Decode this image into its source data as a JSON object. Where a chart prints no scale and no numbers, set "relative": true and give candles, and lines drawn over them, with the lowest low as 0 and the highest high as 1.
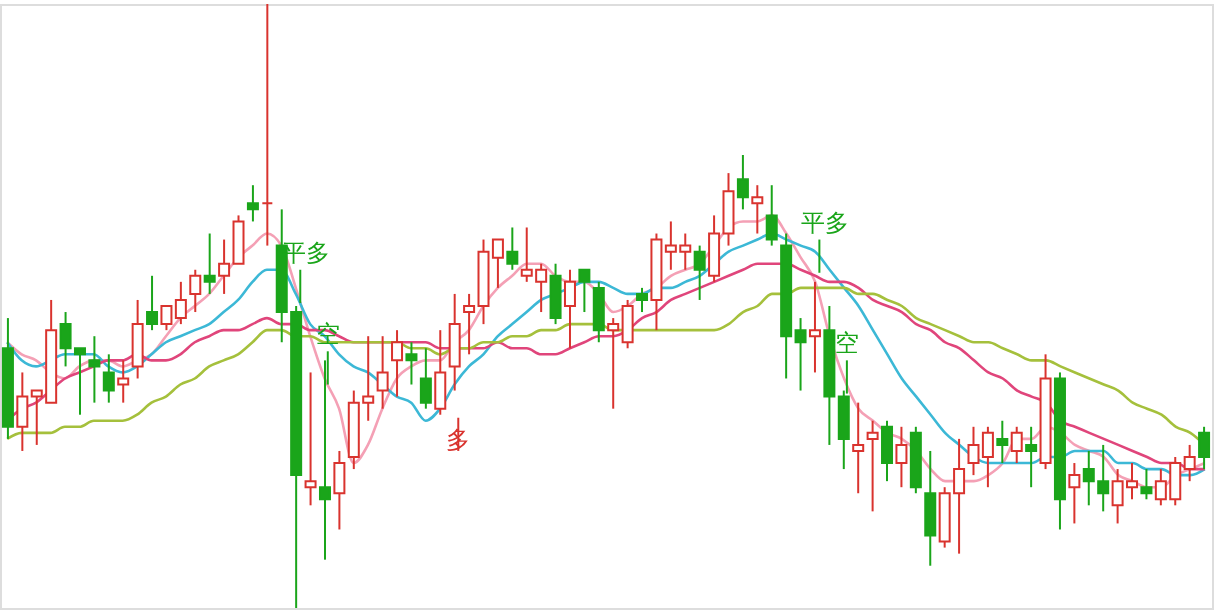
{
  "chart_data": {
    "type": "candlestick",
    "relative": true,
    "categories": [
      null,
      null,
      null,
      null,
      null,
      null,
      null,
      null,
      null,
      null,
      null,
      null,
      null,
      null,
      null,
      null,
      null,
      null,
      null,
      null,
      null,
      null,
      null,
      null,
      null,
      null,
      null,
      null,
      null,
      null,
      null,
      null,
      null,
      null,
      null,
      null,
      null,
      null,
      null,
      null,
      null,
      null,
      null,
      null,
      null,
      null,
      null,
      null,
      null,
      null,
      null,
      null,
      null,
      null,
      null,
      null,
      null,
      null,
      null,
      null,
      null,
      null,
      null,
      null,
      null,
      null,
      null,
      null,
      null,
      null,
      null,
      null,
      null,
      null,
      null,
      null,
      null,
      null,
      null,
      null,
      null,
      null,
      null,
      null
    ],
    "ohlc": [
      [
        0.43,
        0.48,
        0.28,
        0.3
      ],
      [
        0.3,
        0.39,
        0.26,
        0.35
      ],
      [
        0.35,
        0.36,
        0.27,
        0.36
      ],
      [
        0.34,
        0.51,
        0.34,
        0.46
      ],
      [
        0.47,
        0.49,
        0.4,
        0.43
      ],
      [
        0.43,
        0.43,
        0.32,
        0.42
      ],
      [
        0.41,
        0.45,
        0.34,
        0.4
      ],
      [
        0.39,
        0.42,
        0.34,
        0.36
      ],
      [
        0.37,
        0.41,
        0.34,
        0.38
      ],
      [
        0.4,
        0.51,
        0.38,
        0.47
      ],
      [
        0.49,
        0.55,
        0.46,
        0.47
      ],
      [
        0.47,
        0.5,
        0.46,
        0.5
      ],
      [
        0.48,
        0.54,
        0.47,
        0.51
      ],
      [
        0.52,
        0.56,
        0.49,
        0.55
      ],
      [
        0.55,
        0.62,
        0.52,
        0.54
      ],
      [
        0.55,
        0.61,
        0.52,
        0.57
      ],
      [
        0.57,
        0.65,
        0.57,
        0.64
      ],
      [
        0.67,
        0.7,
        0.64,
        0.66
      ],
      [
        0.67,
        1.0,
        0.6,
        0.67
      ],
      [
        0.6,
        0.66,
        0.44,
        0.49
      ],
      [
        0.49,
        0.5,
        0.0,
        0.22
      ],
      [
        0.2,
        0.39,
        0.17,
        0.21
      ],
      [
        0.2,
        0.41,
        0.08,
        0.18
      ],
      [
        0.19,
        0.26,
        0.13,
        0.24
      ],
      [
        0.25,
        0.36,
        0.23,
        0.34
      ],
      [
        0.34,
        0.45,
        0.31,
        0.35
      ],
      [
        0.36,
        0.45,
        0.33,
        0.39
      ],
      [
        0.41,
        0.46,
        0.35,
        0.44
      ],
      [
        0.42,
        0.44,
        0.37,
        0.41
      ],
      [
        0.38,
        0.43,
        0.33,
        0.34
      ],
      [
        0.33,
        0.46,
        0.32,
        0.39
      ],
      [
        0.4,
        0.52,
        0.36,
        0.47
      ],
      [
        0.49,
        0.52,
        0.42,
        0.5
      ],
      [
        0.5,
        0.61,
        0.47,
        0.59
      ],
      [
        0.58,
        0.61,
        0.53,
        0.61
      ],
      [
        0.59,
        0.63,
        0.56,
        0.57
      ],
      [
        0.55,
        0.63,
        0.54,
        0.56
      ],
      [
        0.54,
        0.57,
        0.49,
        0.56
      ],
      [
        0.55,
        0.57,
        0.47,
        0.48
      ],
      [
        0.5,
        0.56,
        0.43,
        0.54
      ],
      [
        0.56,
        0.56,
        0.49,
        0.54
      ],
      [
        0.53,
        0.54,
        0.44,
        0.46
      ],
      [
        0.46,
        0.48,
        0.33,
        0.47
      ],
      [
        0.44,
        0.51,
        0.43,
        0.5
      ],
      [
        0.52,
        0.53,
        0.49,
        0.51
      ],
      [
        0.51,
        0.62,
        0.46,
        0.61
      ],
      [
        0.59,
        0.64,
        0.56,
        0.6
      ],
      [
        0.59,
        0.62,
        0.56,
        0.6
      ],
      [
        0.59,
        0.6,
        0.51,
        0.56
      ],
      [
        0.55,
        0.65,
        0.54,
        0.62
      ],
      [
        0.62,
        0.72,
        0.6,
        0.69
      ],
      [
        0.71,
        0.75,
        0.66,
        0.68
      ],
      [
        0.67,
        0.7,
        0.62,
        0.68
      ],
      [
        0.65,
        0.7,
        0.6,
        0.61
      ],
      [
        0.6,
        0.62,
        0.38,
        0.45
      ],
      [
        0.46,
        0.48,
        0.36,
        0.44
      ],
      [
        0.45,
        0.54,
        0.39,
        0.46
      ],
      [
        0.46,
        0.5,
        0.27,
        0.35
      ],
      [
        0.35,
        0.36,
        0.23,
        0.28
      ],
      [
        0.26,
        0.34,
        0.19,
        0.27
      ],
      [
        0.28,
        0.31,
        0.16,
        0.29
      ],
      [
        0.3,
        0.31,
        0.21,
        0.24
      ],
      [
        0.24,
        0.3,
        0.2,
        0.27
      ],
      [
        0.29,
        0.3,
        0.19,
        0.2
      ],
      [
        0.19,
        0.26,
        0.07,
        0.12
      ],
      [
        0.11,
        0.2,
        0.1,
        0.19
      ],
      [
        0.19,
        0.28,
        0.09,
        0.23
      ],
      [
        0.24,
        0.3,
        0.22,
        0.27
      ],
      [
        0.25,
        0.3,
        0.2,
        0.29
      ],
      [
        0.28,
        0.31,
        0.24,
        0.27
      ],
      [
        0.26,
        0.3,
        0.24,
        0.29
      ],
      [
        0.27,
        0.3,
        0.2,
        0.26
      ],
      [
        0.24,
        0.42,
        0.23,
        0.38
      ],
      [
        0.38,
        0.39,
        0.13,
        0.18
      ],
      [
        0.2,
        0.24,
        0.14,
        0.22
      ],
      [
        0.23,
        0.26,
        0.17,
        0.21
      ],
      [
        0.21,
        0.27,
        0.16,
        0.19
      ],
      [
        0.17,
        0.23,
        0.14,
        0.21
      ],
      [
        0.2,
        0.24,
        0.18,
        0.21
      ],
      [
        0.2,
        0.23,
        0.18,
        0.19
      ],
      [
        0.18,
        0.23,
        0.17,
        0.21
      ],
      [
        0.18,
        0.25,
        0.17,
        0.24
      ],
      [
        0.23,
        0.27,
        0.21,
        0.25
      ],
      [
        0.29,
        0.3,
        0.23,
        0.25
      ]
    ],
    "series": [
      {
        "type": "line",
        "color": "#f4a0b5",
        "values": [
          0.44,
          0.42,
          0.41,
          0.39,
          0.38,
          0.4,
          0.41,
          0.41,
          0.4,
          0.41,
          0.42,
          0.45,
          0.48,
          0.5,
          0.52,
          0.55,
          0.58,
          0.6,
          0.62,
          0.6,
          0.53,
          0.45,
          0.38,
          0.33,
          0.24,
          0.27,
          0.33,
          0.38,
          0.4,
          0.41,
          0.41,
          0.44,
          0.46,
          0.5,
          0.53,
          0.55,
          0.57,
          0.57,
          0.55,
          0.54,
          0.54,
          0.52,
          0.49,
          0.5,
          0.52,
          0.53,
          0.55,
          0.56,
          0.57,
          0.6,
          0.63,
          0.64,
          0.64,
          0.65,
          0.62,
          0.58,
          0.54,
          0.45,
          0.38,
          0.33,
          0.31,
          0.29,
          0.28,
          0.26,
          0.23,
          0.21,
          0.21,
          0.21,
          0.22,
          0.24,
          0.28,
          0.28,
          0.3,
          0.29,
          0.27,
          0.26,
          0.25,
          0.22,
          0.21,
          0.2,
          0.2,
          0.22,
          0.23,
          0.24
        ]
      },
      {
        "type": "line",
        "color": "#3cb8d6",
        "values": [
          0.44,
          0.41,
          0.4,
          0.41,
          0.42,
          0.42,
          0.42,
          0.4,
          0.39,
          0.4,
          0.42,
          0.44,
          0.45,
          0.46,
          0.47,
          0.49,
          0.51,
          0.54,
          0.56,
          0.56,
          0.52,
          0.47,
          0.45,
          0.42,
          0.4,
          0.39,
          0.37,
          0.35,
          0.34,
          0.31,
          0.33,
          0.37,
          0.4,
          0.42,
          0.45,
          0.47,
          0.49,
          0.51,
          0.52,
          0.53,
          0.54,
          0.54,
          0.53,
          0.52,
          0.52,
          0.53,
          0.53,
          0.54,
          0.55,
          0.57,
          0.59,
          0.6,
          0.61,
          0.62,
          0.61,
          0.6,
          0.59,
          0.56,
          0.53,
          0.5,
          0.46,
          0.42,
          0.38,
          0.35,
          0.32,
          0.29,
          0.27,
          0.25,
          0.24,
          0.24,
          0.24,
          0.24,
          0.25,
          0.25,
          0.26,
          0.26,
          0.26,
          0.24,
          0.24,
          0.23,
          0.23,
          0.22,
          0.22,
          0.23
        ]
      },
      {
        "type": "line",
        "color": "#e0457b",
        "values": [
          0.31,
          0.33,
          0.34,
          0.36,
          0.38,
          0.39,
          0.4,
          0.41,
          0.41,
          0.42,
          0.41,
          0.41,
          0.42,
          0.44,
          0.45,
          0.46,
          0.46,
          0.47,
          0.48,
          0.47,
          0.47,
          0.46,
          0.46,
          0.45,
          0.44,
          0.44,
          0.44,
          0.44,
          0.44,
          0.44,
          0.43,
          0.43,
          0.43,
          0.43,
          0.44,
          0.43,
          0.43,
          0.42,
          0.42,
          0.43,
          0.44,
          0.45,
          0.45,
          0.46,
          0.48,
          0.49,
          0.51,
          0.52,
          0.53,
          0.54,
          0.55,
          0.56,
          0.57,
          0.57,
          0.57,
          0.56,
          0.55,
          0.54,
          0.54,
          0.53,
          0.51,
          0.5,
          0.49,
          0.47,
          0.46,
          0.44,
          0.43,
          0.41,
          0.39,
          0.38,
          0.36,
          0.35,
          0.34,
          0.31,
          0.3,
          0.29,
          0.28,
          0.27,
          0.26,
          0.25,
          0.24,
          0.24,
          0.23,
          0.23
        ]
      },
      {
        "type": "line",
        "color": "#a5c03c",
        "values": [
          0.28,
          0.29,
          0.29,
          0.29,
          0.3,
          0.3,
          0.31,
          0.31,
          0.31,
          0.32,
          0.34,
          0.35,
          0.37,
          0.38,
          0.4,
          0.41,
          0.42,
          0.44,
          0.46,
          0.46,
          0.45,
          0.45,
          0.44,
          0.44,
          0.44,
          0.44,
          0.44,
          0.44,
          0.43,
          0.43,
          0.42,
          0.43,
          0.43,
          0.44,
          0.44,
          0.45,
          0.45,
          0.46,
          0.46,
          0.47,
          0.47,
          0.47,
          0.46,
          0.46,
          0.46,
          0.46,
          0.46,
          0.46,
          0.46,
          0.46,
          0.47,
          0.49,
          0.5,
          0.52,
          0.52,
          0.53,
          0.53,
          0.53,
          0.53,
          0.52,
          0.52,
          0.51,
          0.5,
          0.48,
          0.47,
          0.46,
          0.45,
          0.44,
          0.44,
          0.43,
          0.42,
          0.41,
          0.41,
          0.4,
          0.39,
          0.38,
          0.37,
          0.36,
          0.34,
          0.33,
          0.32,
          0.3,
          0.29,
          0.27
        ]
      }
    ],
    "annotations": [
      "平多",
      "空",
      "多",
      "平多",
      "空"
    ]
  }
}
